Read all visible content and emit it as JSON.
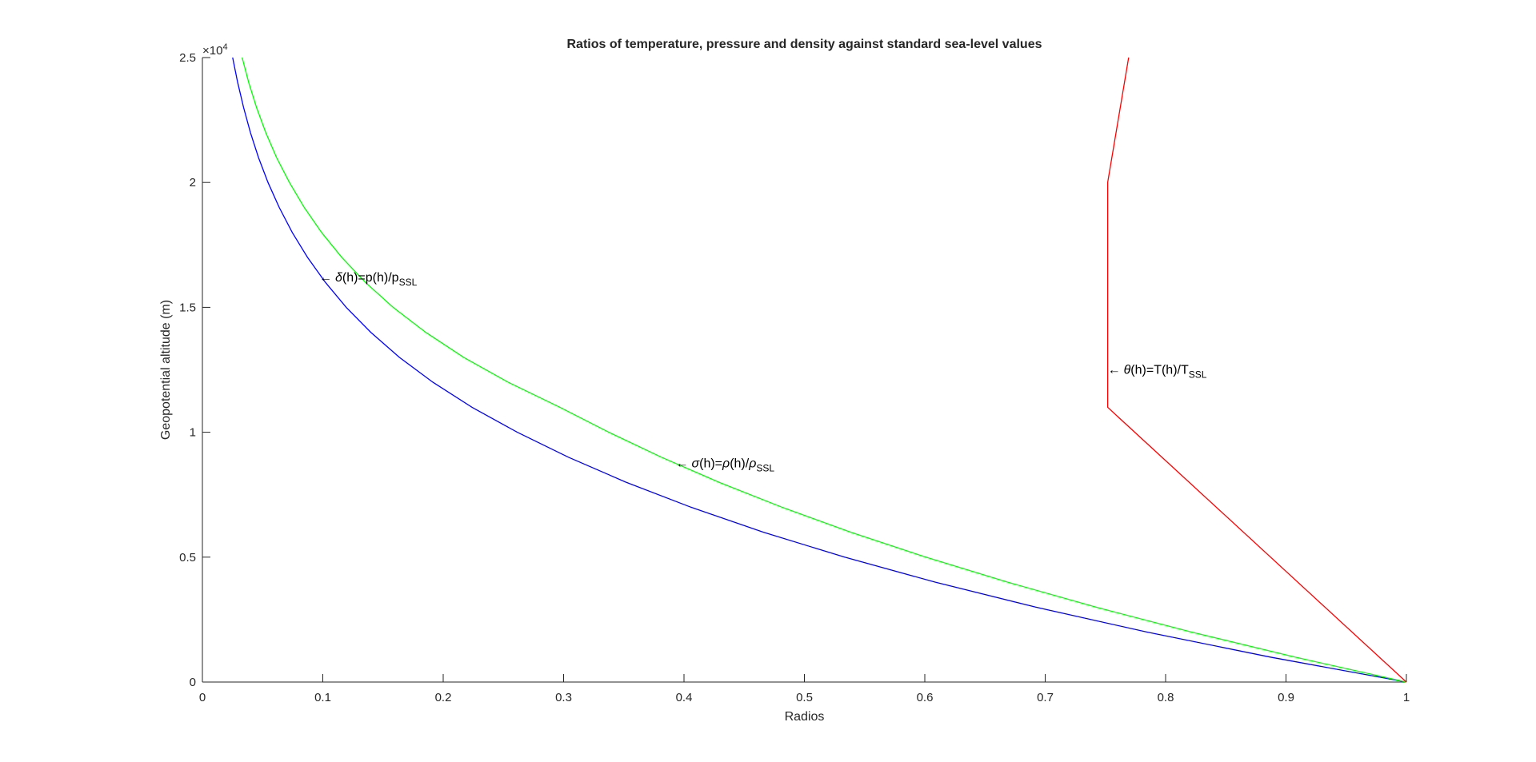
{
  "chart_data": {
    "type": "line",
    "title": "Ratios of temperature, pressure and density against standard sea-level values",
    "xlabel": "Radios",
    "ylabel": "Geopotential altitude (m)",
    "xlim": [
      0,
      1
    ],
    "ylim": [
      0,
      25000
    ],
    "y_exponent_label": "×10",
    "y_exponent_power": "4",
    "grid": false,
    "x_ticks": [
      0,
      0.1,
      0.2,
      0.3,
      0.4,
      0.5,
      0.6,
      0.7,
      0.8,
      0.9,
      1
    ],
    "x_tick_labels": [
      "0",
      "0.1",
      "0.2",
      "0.3",
      "0.4",
      "0.5",
      "0.6",
      "0.7",
      "0.8",
      "0.9",
      "1"
    ],
    "y_ticks": [
      0,
      5000,
      10000,
      15000,
      20000,
      25000
    ],
    "y_tick_labels": [
      "0",
      "0.5",
      "1",
      "1.5",
      "2",
      "2.5"
    ],
    "series": [
      {
        "color": "#0000ff",
        "points": [
          [
            1,
            0
          ],
          [
            0.887,
            1000
          ],
          [
            0.7846,
            2000
          ],
          [
            0.692,
            3000
          ],
          [
            0.6085,
            4000
          ],
          [
            0.5334,
            5000
          ],
          [
            0.466,
            6000
          ],
          [
            0.4057,
            7000
          ],
          [
            0.3519,
            8000
          ],
          [
            0.304,
            9000
          ],
          [
            0.2615,
            10000
          ],
          [
            0.224,
            11000
          ],
          [
            0.1915,
            12000
          ],
          [
            0.1636,
            13000
          ],
          [
            0.1399,
            14000
          ],
          [
            0.1195,
            15000
          ],
          [
            0.1022,
            16000
          ],
          [
            0.0873,
            17000
          ],
          [
            0.0746,
            18000
          ],
          [
            0.0638,
            19000
          ],
          [
            0.0545,
            20000
          ],
          [
            0.0466,
            21000
          ],
          [
            0.0399,
            22000
          ],
          [
            0.0342,
            23000
          ],
          [
            0.0293,
            24000
          ],
          [
            0.0251,
            25000
          ]
        ]
      },
      {
        "color": "#00ff00",
        "points": [
          [
            1,
            0
          ],
          [
            0.9075,
            1000
          ],
          [
            0.8216,
            2000
          ],
          [
            0.7421,
            3000
          ],
          [
            0.6687,
            4000
          ],
          [
            0.6009,
            5000
          ],
          [
            0.5386,
            6000
          ],
          [
            0.4814,
            7000
          ],
          [
            0.4291,
            8000
          ],
          [
            0.3813,
            9000
          ],
          [
            0.3376,
            10000
          ],
          [
            0.2971,
            11000
          ],
          [
            0.2541,
            12000
          ],
          [
            0.2171,
            13000
          ],
          [
            0.1855,
            14000
          ],
          [
            0.1585,
            15000
          ],
          [
            0.1355,
            16000
          ],
          [
            0.1158,
            17000
          ],
          [
            0.099,
            18000
          ],
          [
            0.0846,
            19000
          ],
          [
            0.0723,
            20000
          ],
          [
            0.0616,
            21000
          ],
          [
            0.0526,
            22000
          ],
          [
            0.045,
            23000
          ],
          [
            0.0385,
            24000
          ],
          [
            0.033,
            25000
          ]
        ]
      },
      {
        "color": "#ff0000",
        "points": [
          [
            1,
            0
          ],
          [
            0.7519,
            11000
          ],
          [
            0.7519,
            20000
          ],
          [
            0.7693,
            25000
          ]
        ]
      }
    ],
    "annotations": [
      {
        "arrow": "←",
        "symbol": "δ",
        "text": "(h)=p(h)/p",
        "subscript": "SSL",
        "x": 0.097,
        "y": 16200
      },
      {
        "arrow": "←",
        "symbol": "σ",
        "text": "(h)=",
        "symbol2": "ρ",
        "text2": "(h)/",
        "symbol3": "ρ",
        "subscript": "SSL",
        "x": 0.393,
        "y": 8750
      },
      {
        "arrow": "←",
        "symbol": "θ",
        "text": "(h)=T(h)/T",
        "subscript": "SSL",
        "x": 0.7519,
        "y": 12500
      }
    ]
  }
}
